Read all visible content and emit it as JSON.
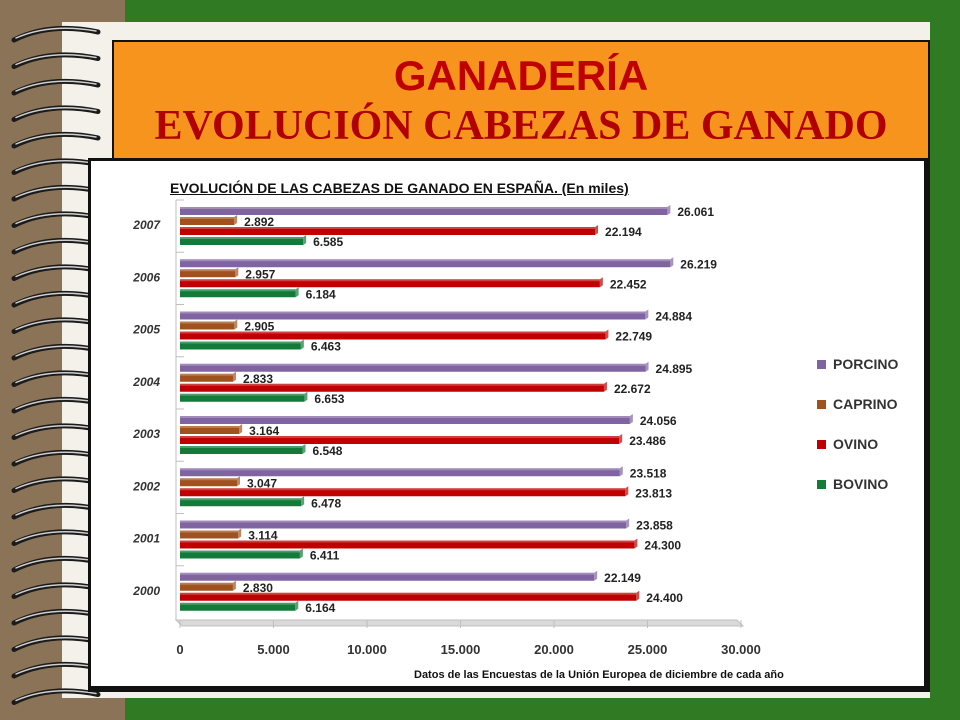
{
  "header": {
    "title": "GANADERÍA",
    "subtitle": "EVOLUCIÓN CABEZAS DE GANADO"
  },
  "footer": {
    "source_note": "Datos de las Encuestas de la Unión Europea de diciembre de cada año"
  },
  "colors": {
    "background": "#2f7a22",
    "title_box": "#f7941d",
    "porcino": "#8064a2",
    "caprino": "#a0521e",
    "ovino": "#c00000",
    "bovino": "#137b3a"
  },
  "chart_data": {
    "type": "bar",
    "orientation": "horizontal",
    "title": "EVOLUCIÓN DE LAS CABEZAS DE GANADO EN ESPAÑA. (En miles)",
    "categories": [
      "2000",
      "2001",
      "2002",
      "2003",
      "2004",
      "2005",
      "2006",
      "2007"
    ],
    "xlim": [
      0,
      30000
    ],
    "xticks": [
      0,
      5000,
      10000,
      15000,
      20000,
      25000,
      30000
    ],
    "xtick_labels": [
      "0",
      "5.000",
      "10.000",
      "15.000",
      "20.000",
      "25.000",
      "30.000"
    ],
    "legend_position": "right",
    "series": [
      {
        "name": "PORCINO",
        "color": "#8064a2",
        "values": [
          22149,
          23858,
          23518,
          24056,
          24895,
          24884,
          26219,
          26061
        ],
        "labels": [
          "22.149",
          "23.858",
          "23.518",
          "24.056",
          "24.895",
          "24.884",
          "26.219",
          "26.061"
        ]
      },
      {
        "name": "CAPRINO",
        "color": "#a0521e",
        "values": [
          2830,
          3114,
          3047,
          3164,
          2833,
          2905,
          2957,
          2892
        ],
        "labels": [
          "2.830",
          "3.114",
          "3.047",
          "3.164",
          "2.833",
          "2.905",
          "2.957",
          "2.892"
        ]
      },
      {
        "name": "OVINO",
        "color": "#c00000",
        "values": [
          24400,
          24300,
          23813,
          23486,
          22672,
          22749,
          22452,
          22194
        ],
        "labels": [
          "24.400",
          "24.300",
          "23.813",
          "23.486",
          "22.672",
          "22.749",
          "22.452",
          "22.194"
        ]
      },
      {
        "name": "BOVINO",
        "color": "#137b3a",
        "values": [
          6164,
          6411,
          6478,
          6548,
          6653,
          6463,
          6184,
          6585
        ],
        "labels": [
          "6.164",
          "6.411",
          "6.478",
          "6.548",
          "6.653",
          "6.463",
          "6.184",
          "6.585"
        ]
      }
    ]
  }
}
